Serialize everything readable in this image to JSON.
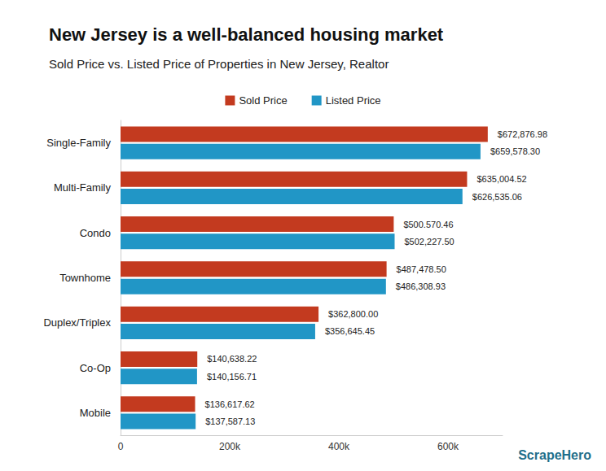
{
  "chart_data": {
    "type": "bar",
    "orientation": "horizontal",
    "title": "New Jersey is a well-balanced housing market",
    "subtitle": "Sold Price vs. Listed Price of Properties in New Jersey, Realtor",
    "categories": [
      "Single-Family",
      "Multi-Family",
      "Condo",
      "Townhome",
      "Duplex/Triplex",
      "Co-Op",
      "Mobile"
    ],
    "series": [
      {
        "name": "Sold Price",
        "color": "#c33a1f",
        "values": [
          672876.98,
          635004.52,
          500570.46,
          487478.5,
          362800.0,
          140638.22,
          136617.62
        ],
        "value_labels": [
          "$672,876.98",
          "$635,004.52",
          "$500.570.46",
          "$487,478.50",
          "$362,800.00",
          "$140,638.22",
          "$136,617.62"
        ]
      },
      {
        "name": "Listed Price",
        "color": "#2196c6",
        "values": [
          659578.3,
          626535.06,
          502227.5,
          486308.93,
          356645.45,
          140156.71,
          137587.13
        ],
        "value_labels": [
          "$659,578.30",
          "$626,535.06",
          "$502,227.50",
          "$486,308.93",
          "$356,645.45",
          "$140,156.71",
          "$137,587.13"
        ]
      }
    ],
    "xlim": [
      0,
      700000
    ],
    "xticks": [
      0,
      {
        "value": 200000,
        "label": "200k"
      },
      {
        "value": 400000,
        "label": "400k"
      },
      {
        "value": 600000,
        "label": "600k"
      }
    ],
    "grid": false,
    "legend": "top",
    "data_labels": true,
    "annotations": [
      "ScrapeHero"
    ]
  }
}
